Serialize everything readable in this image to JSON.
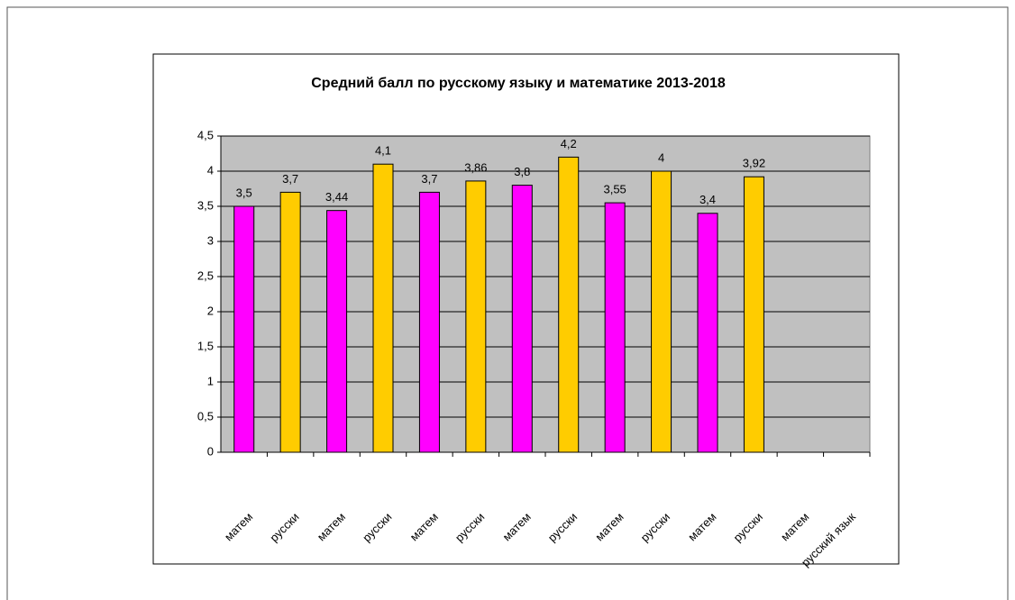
{
  "chart_data": {
    "type": "bar",
    "title": "Средний балл по русскому языку и математике  2013-2018",
    "categories": [
      "матем",
      "русски",
      "матем",
      "русски",
      "матем",
      "русски",
      "матем",
      "русски",
      "матем",
      "русски",
      "матем",
      "русски",
      "матем",
      "русский язык"
    ],
    "values": [
      3.5,
      3.7,
      3.44,
      4.1,
      3.7,
      3.86,
      3.8,
      4.2,
      3.55,
      4,
      3.4,
      3.92,
      null,
      null
    ],
    "value_labels": [
      "3,5",
      "3,7",
      "3,44",
      "4,1",
      "3,7",
      "3,86",
      "3,8",
      "4,2",
      "3,55",
      "4",
      "3,4",
      "3,92",
      null,
      null
    ],
    "colors": [
      "#ff00ff",
      "#ffcc00",
      "#ff00ff",
      "#ffcc00",
      "#ff00ff",
      "#ffcc00",
      "#ff00ff",
      "#ffcc00",
      "#ff00ff",
      "#ffcc00",
      "#ff00ff",
      "#ffcc00",
      "#ff00ff",
      "#ffcc00"
    ],
    "ylim": [
      0,
      4.5
    ],
    "yticks": [
      0,
      {
        "value": 0.5,
        "label": "0,5"
      },
      1,
      {
        "value": 1.5,
        "label": "1,5"
      },
      2,
      {
        "value": 2.5,
        "label": "2,5"
      },
      3,
      {
        "value": 3.5,
        "label": "3,5"
      },
      4,
      {
        "value": 4.5,
        "label": "4,5"
      }
    ],
    "grid": true
  }
}
